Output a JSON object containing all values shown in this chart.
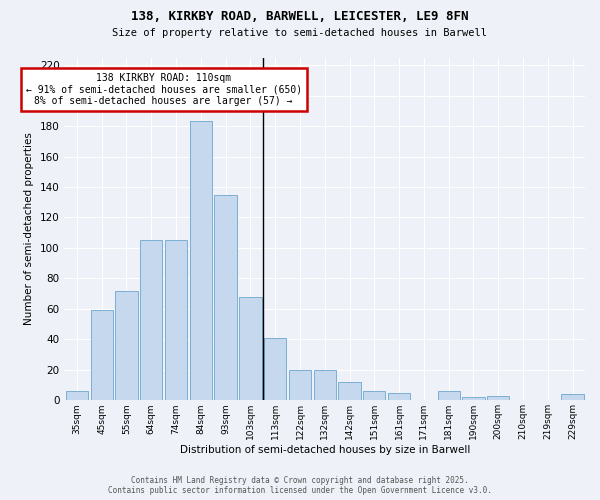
{
  "title1": "138, KIRKBY ROAD, BARWELL, LEICESTER, LE9 8FN",
  "title2": "Size of property relative to semi-detached houses in Barwell",
  "xlabel": "Distribution of semi-detached houses by size in Barwell",
  "ylabel": "Number of semi-detached properties",
  "categories": [
    "35sqm",
    "45sqm",
    "55sqm",
    "64sqm",
    "74sqm",
    "84sqm",
    "93sqm",
    "103sqm",
    "113sqm",
    "122sqm",
    "132sqm",
    "142sqm",
    "151sqm",
    "161sqm",
    "171sqm",
    "181sqm",
    "190sqm",
    "200sqm",
    "210sqm",
    "219sqm",
    "229sqm"
  ],
  "values": [
    6,
    59,
    72,
    105,
    105,
    183,
    135,
    68,
    41,
    20,
    20,
    12,
    6,
    5,
    0,
    6,
    2,
    3,
    0,
    0,
    4
  ],
  "bar_color": "#c5d8ed",
  "bar_edge_color": "#7bafd4",
  "property_label": "138 KIRKBY ROAD: 110sqm",
  "pct_smaller": 91,
  "count_smaller": 650,
  "pct_larger": 8,
  "count_larger": 57,
  "annotation_box_color": "#cc0000",
  "ylim": [
    0,
    225
  ],
  "yticks": [
    0,
    20,
    40,
    60,
    80,
    100,
    120,
    140,
    160,
    180,
    200,
    220
  ],
  "background_color": "#eef2f8",
  "grid_color": "#ffffff",
  "footer1": "Contains HM Land Registry data © Crown copyright and database right 2025.",
  "footer2": "Contains public sector information licensed under the Open Government Licence v3.0."
}
